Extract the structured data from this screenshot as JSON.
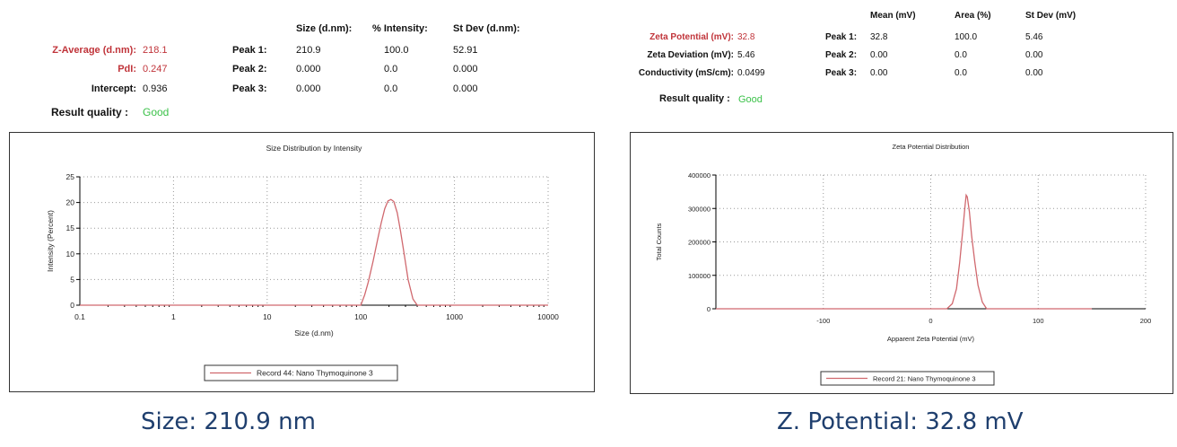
{
  "left": {
    "table": {
      "col_headers": [
        "Size (d.nm):",
        "% Intensity:",
        "St Dev (d.nm):"
      ],
      "summary": [
        {
          "label": "Z-Average (d.nm):",
          "value": "218.1",
          "red": true
        },
        {
          "label": "PdI:",
          "value": "0.247",
          "red": true
        },
        {
          "label": "Intercept:",
          "value": "0.936",
          "red": false
        }
      ],
      "peaks": [
        {
          "label": "Peak 1:",
          "values": [
            "210.9",
            "100.0",
            "52.91"
          ]
        },
        {
          "label": "Peak 2:",
          "values": [
            "0.000",
            "0.0",
            "0.000"
          ]
        },
        {
          "label": "Peak 3:",
          "values": [
            "0.000",
            "0.0",
            "0.000"
          ]
        }
      ],
      "result_quality_label": "Result quality :",
      "result_quality_value": "Good"
    },
    "caption": "Size: 210.9 nm"
  },
  "right": {
    "table": {
      "col_headers": [
        "Mean (mV)",
        "Area (%)",
        "St Dev (mV)"
      ],
      "summary": [
        {
          "label": "Zeta Potential (mV):",
          "value": "32.8",
          "red": true
        },
        {
          "label": "Zeta Deviation (mV):",
          "value": "5.46",
          "red": false
        },
        {
          "label": "Conductivity (mS/cm):",
          "value": "0.0499",
          "red": false
        }
      ],
      "peaks": [
        {
          "label": "Peak 1:",
          "values": [
            "32.8",
            "100.0",
            "5.46"
          ]
        },
        {
          "label": "Peak 2:",
          "values": [
            "0.00",
            "0.0",
            "0.00"
          ]
        },
        {
          "label": "Peak 3:",
          "values": [
            "0.00",
            "0.0",
            "0.00"
          ]
        }
      ],
      "result_quality_label": "Result quality :",
      "result_quality_value": "Good"
    },
    "caption": "Z. Potential: 32.8 mV"
  },
  "colors": {
    "curve": "#d0686e",
    "label_red": "#c0343a",
    "good": "#3cc24a",
    "caption": "#1f3f6e"
  },
  "chart_data": [
    {
      "type": "line",
      "title": "Size Distribution by Intensity",
      "xlabel": "Size (d.nm)",
      "ylabel": "Intensity (Percent)",
      "xscale": "log",
      "xlim": [
        0.1,
        10000
      ],
      "ylim": [
        0,
        25
      ],
      "xticks": [
        0.1,
        1,
        10,
        100,
        1000,
        10000
      ],
      "xtick_labels": [
        "0.1",
        "1",
        "10",
        "100",
        "1000",
        "10000"
      ],
      "yticks": [
        0,
        5,
        10,
        15,
        20,
        25
      ],
      "grid": true,
      "legend_position": "bottom-center",
      "series": [
        {
          "name": "Record 44: Nano Thymoquinone 3",
          "x": [
            0.1,
            100,
            110,
            120,
            135,
            150,
            165,
            180,
            195,
            210,
            225,
            245,
            265,
            290,
            320,
            360,
            400,
            10000
          ],
          "y": [
            0,
            0,
            2.0,
            4.5,
            8.5,
            12.5,
            16.0,
            18.8,
            20.3,
            20.6,
            20.2,
            18.0,
            14.5,
            10.0,
            5.0,
            1.2,
            0,
            0
          ]
        }
      ]
    },
    {
      "type": "line",
      "title": "Zeta Potential Distribution",
      "xlabel": "Apparent Zeta Potential (mV)",
      "ylabel": "Total Counts",
      "xlim": [
        -200,
        200
      ],
      "ylim": [
        0,
        400000
      ],
      "xticks": [
        -100,
        0,
        100,
        200
      ],
      "yticks": [
        0,
        100000,
        200000,
        300000,
        400000
      ],
      "grid": true,
      "legend_position": "bottom-center",
      "series": [
        {
          "name": "Record 21: Nano Thymoquinone 3",
          "x": [
            -200,
            15,
            20,
            24,
            27,
            30,
            32,
            33,
            34,
            36,
            38,
            41,
            44,
            48,
            52,
            150
          ],
          "y": [
            0,
            0,
            15000,
            60000,
            140000,
            240000,
            310000,
            340000,
            335000,
            290000,
            220000,
            140000,
            70000,
            20000,
            0,
            0
          ]
        }
      ]
    }
  ]
}
